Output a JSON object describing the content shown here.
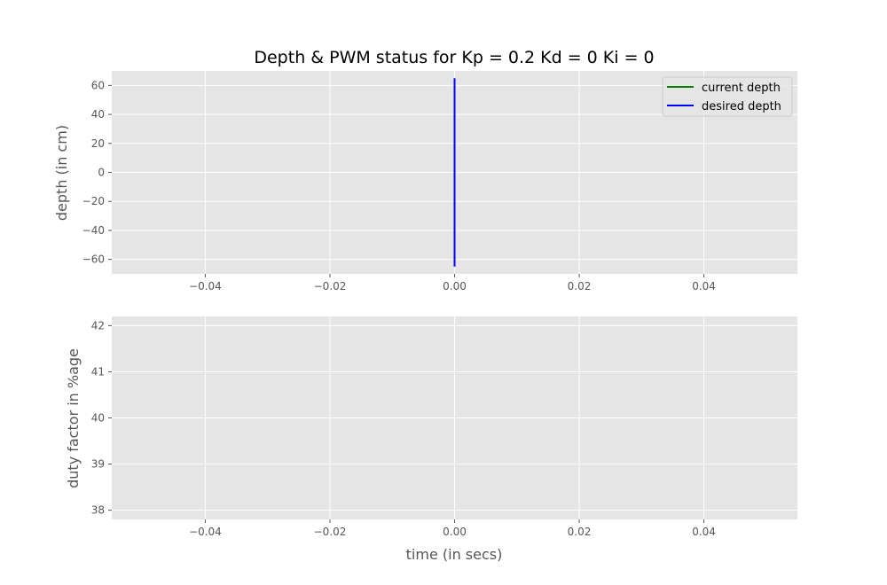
{
  "chart_data": [
    {
      "type": "line",
      "title": "Depth & PWM status for Kp = 0.2 Kd = 0 Ki = 0",
      "xlabel": "",
      "ylabel": "depth (in cm)",
      "xlim": [
        -0.055,
        0.055
      ],
      "ylim": [
        -70,
        70
      ],
      "xticks": [
        -0.04,
        -0.02,
        0.0,
        0.02,
        0.04
      ],
      "xtick_labels": [
        "−0.04",
        "−0.02",
        "0.00",
        "0.02",
        "0.04"
      ],
      "yticks": [
        60,
        40,
        20,
        0,
        -20,
        -40,
        -60
      ],
      "ytick_labels": [
        "60",
        "40",
        "20",
        "0",
        "−20",
        "−40",
        "−60"
      ],
      "grid": true,
      "legend_position": "top-right",
      "series": [
        {
          "name": "current depth",
          "color": "#008000",
          "x": [],
          "y": []
        },
        {
          "name": "desired depth",
          "color": "#0000ff",
          "x": [
            0.0,
            0.0
          ],
          "y": [
            -65,
            65
          ]
        }
      ]
    },
    {
      "type": "line",
      "title": "",
      "xlabel": "time (in secs)",
      "ylabel": "duty factor in %age",
      "xlim": [
        -0.055,
        0.055
      ],
      "ylim": [
        37.8,
        42.2
      ],
      "xticks": [
        -0.04,
        -0.02,
        0.0,
        0.02,
        0.04
      ],
      "xtick_labels": [
        "−0.04",
        "−0.02",
        "0.00",
        "0.02",
        "0.04"
      ],
      "yticks": [
        42,
        41,
        40,
        39,
        38
      ],
      "ytick_labels": [
        "42",
        "41",
        "40",
        "39",
        "38"
      ],
      "grid": true,
      "series": []
    }
  ],
  "colors": {
    "plot_background": "#e5e5e5",
    "grid": "#ffffff",
    "text": "#555555"
  }
}
